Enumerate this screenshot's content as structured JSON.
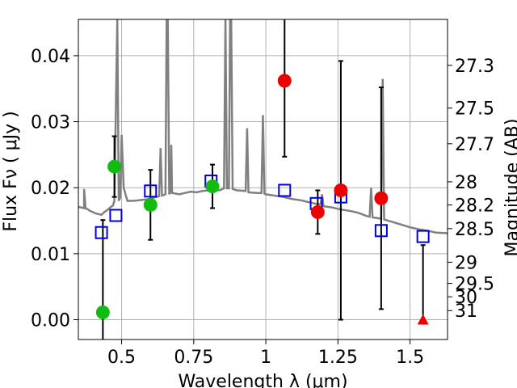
{
  "chart_data": {
    "type": "scatter",
    "title": "",
    "xlabel": "Wavelength  λ (μm)",
    "ylabel": "Flux  Fν  ( μJy )",
    "ylabel_right": "Magnitude (AB)",
    "xlim": [
      0.35,
      1.63
    ],
    "ylim": [
      -0.003,
      0.0455
    ],
    "grid": true,
    "x_ticks": [
      {
        "value": 0.5,
        "label": "0.5"
      },
      {
        "value": 0.75,
        "label": "0.75"
      },
      {
        "value": 1.0,
        "label": "1"
      },
      {
        "value": 1.25,
        "label": "1.25"
      },
      {
        "value": 1.5,
        "label": "1.5"
      }
    ],
    "y_ticks": [
      {
        "value": 0.0,
        "label": "0.00"
      },
      {
        "value": 0.01,
        "label": "0.01"
      },
      {
        "value": 0.02,
        "label": "0.02"
      },
      {
        "value": 0.03,
        "label": "0.03"
      },
      {
        "value": 0.04,
        "label": "0.04"
      }
    ],
    "right_ticks": [
      {
        "flux": 0.03854,
        "label": "27.3"
      },
      {
        "flux": 0.03206,
        "label": "27.5"
      },
      {
        "flux": 0.02666,
        "label": "27.7"
      },
      {
        "flux": 0.02089,
        "label": "28"
      },
      {
        "flux": 0.01738,
        "label": "28.2"
      },
      {
        "flux": 0.0138,
        "label": "28.5"
      },
      {
        "flux": 0.00871,
        "label": "29"
      },
      {
        "flux": 0.0055,
        "label": "29.5"
      },
      {
        "flux": 0.00347,
        "label": "30"
      },
      {
        "flux": 0.00138,
        "label": "31"
      }
    ],
    "colors": {
      "template": "#808080",
      "model": "#0000dd",
      "green": "#11bb11",
      "red": "#ee0000",
      "errorbar": "#000000",
      "grid": "#b0b0b0"
    },
    "template_spectrum": [
      [
        0.35,
        0.0171
      ],
      [
        0.36,
        0.017
      ],
      [
        0.37,
        0.0169
      ],
      [
        0.37,
        0.0198
      ],
      [
        0.375,
        0.0169
      ],
      [
        0.38,
        0.0168
      ],
      [
        0.39,
        0.0165
      ],
      [
        0.4,
        0.0163
      ],
      [
        0.41,
        0.0161
      ],
      [
        0.42,
        0.016
      ],
      [
        0.43,
        0.0159
      ],
      [
        0.44,
        0.0163
      ],
      [
        0.45,
        0.0166
      ],
      [
        0.46,
        0.017
      ],
      [
        0.47,
        0.0173
      ],
      [
        0.475,
        0.018
      ],
      [
        0.485,
        0.0455
      ],
      [
        0.49,
        0.018
      ],
      [
        0.495,
        0.0185
      ],
      [
        0.5,
        0.028
      ],
      [
        0.507,
        0.02
      ],
      [
        0.52,
        0.018
      ],
      [
        0.54,
        0.018
      ],
      [
        0.56,
        0.0181
      ],
      [
        0.58,
        0.0182
      ],
      [
        0.6,
        0.0183
      ],
      [
        0.61,
        0.0185
      ],
      [
        0.62,
        0.0186
      ],
      [
        0.63,
        0.0187
      ],
      [
        0.635,
        0.026
      ],
      [
        0.64,
        0.0188
      ],
      [
        0.652,
        0.019
      ],
      [
        0.656,
        0.0455
      ],
      [
        0.66,
        0.0455
      ],
      [
        0.665,
        0.019
      ],
      [
        0.67,
        0.0195
      ],
      [
        0.672,
        0.0265
      ],
      [
        0.675,
        0.0192
      ],
      [
        0.7,
        0.019
      ],
      [
        0.72,
        0.0192
      ],
      [
        0.74,
        0.0194
      ],
      [
        0.76,
        0.0193
      ],
      [
        0.78,
        0.0195
      ],
      [
        0.8,
        0.0196
      ],
      [
        0.82,
        0.0197
      ],
      [
        0.84,
        0.0196
      ],
      [
        0.855,
        0.0199
      ],
      [
        0.86,
        0.0455
      ],
      [
        0.865,
        0.0199
      ],
      [
        0.872,
        0.0199
      ],
      [
        0.876,
        0.0455
      ],
      [
        0.88,
        0.0455
      ],
      [
        0.885,
        0.0198
      ],
      [
        0.9,
        0.0196
      ],
      [
        0.93,
        0.0195
      ],
      [
        0.935,
        0.029
      ],
      [
        0.94,
        0.0193
      ],
      [
        0.97,
        0.0192
      ],
      [
        0.985,
        0.0192
      ],
      [
        0.99,
        0.031
      ],
      [
        0.995,
        0.0191
      ],
      [
        1.0,
        0.019
      ],
      [
        1.03,
        0.0188
      ],
      [
        1.06,
        0.0186
      ],
      [
        1.09,
        0.0183
      ],
      [
        1.12,
        0.0181
      ],
      [
        1.15,
        0.0178
      ],
      [
        1.18,
        0.0175
      ],
      [
        1.19,
        0.0175
      ],
      [
        1.195,
        0.019
      ],
      [
        1.2,
        0.0172
      ],
      [
        1.23,
        0.017
      ],
      [
        1.26,
        0.0167
      ],
      [
        1.29,
        0.0165
      ],
      [
        1.32,
        0.0162
      ],
      [
        1.35,
        0.0157
      ],
      [
        1.36,
        0.0156
      ],
      [
        1.365,
        0.02
      ],
      [
        1.37,
        0.0155
      ],
      [
        1.4,
        0.0153
      ],
      [
        1.405,
        0.0365
      ],
      [
        1.41,
        0.0152
      ],
      [
        1.44,
        0.0148
      ],
      [
        1.47,
        0.0144
      ],
      [
        1.5,
        0.014
      ],
      [
        1.53,
        0.0137
      ],
      [
        1.56,
        0.0135
      ],
      [
        1.59,
        0.0132
      ],
      [
        1.63,
        0.0131
      ]
    ],
    "series": [
      {
        "marker": "square",
        "x": [
          0.43,
          0.48,
          0.6,
          0.81,
          1.065,
          1.175,
          1.26,
          1.4,
          1.545
        ],
        "y": [
          0.0132,
          0.0158,
          0.0195,
          0.021,
          0.0196,
          0.0176,
          0.0186,
          0.0135,
          0.0126
        ]
      },
      {
        "marker": "circle",
        "color": "green",
        "x": [
          0.435,
          0.475,
          0.6,
          0.815
        ],
        "y": [
          0.0011,
          0.0232,
          0.0174,
          0.0202
        ],
        "err": [
          0.014,
          0.0046,
          0.0053,
          0.0033
        ]
      },
      {
        "marker": "circle",
        "color": "red",
        "x": [
          1.065,
          1.18,
          1.26,
          1.4
        ],
        "y": [
          0.0362,
          0.0163,
          0.0196,
          0.0184
        ],
        "err": [
          0.0115,
          0.0033,
          0.0196,
          0.0168
        ]
      },
      {
        "marker": "triangle",
        "color": "red",
        "x": [
          1.545
        ],
        "y": [
          0.0
        ],
        "err_up": 0.0113
      }
    ]
  }
}
